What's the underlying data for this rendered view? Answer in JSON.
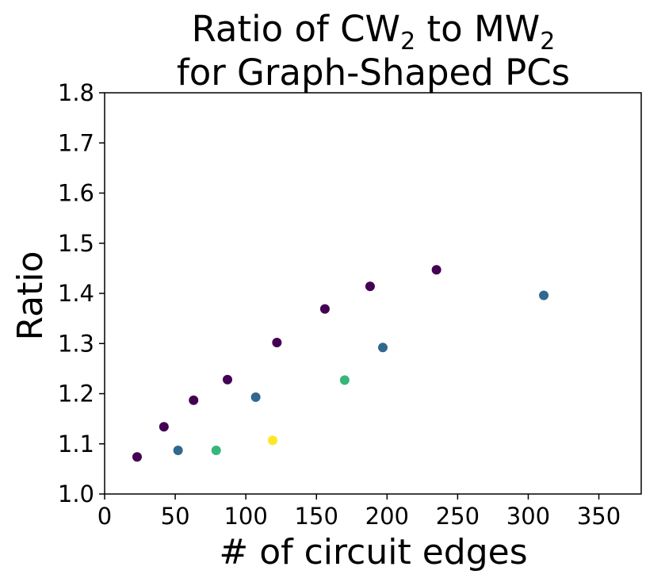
{
  "chart_data": {
    "type": "scatter",
    "title_line1": {
      "main": "Ratio of CW",
      "sub1": "2",
      "mid": " to MW",
      "sub2": "2"
    },
    "title_line2": "for Graph-Shaped PCs",
    "xlabel": "# of circuit edges",
    "ylabel": "Ratio",
    "xlim": [
      0,
      380
    ],
    "ylim": [
      1.0,
      1.8
    ],
    "xticks": [
      "0",
      "50",
      "100",
      "150",
      "200",
      "250",
      "300",
      "350"
    ],
    "yticks": [
      "1.0",
      "1.1",
      "1.2",
      "1.3",
      "1.4",
      "1.5",
      "1.6",
      "1.7",
      "1.8"
    ],
    "grid": false,
    "colors": {
      "purple": "#440154",
      "blue": "#31688e",
      "green": "#35b779",
      "yellow": "#fde725"
    },
    "points": [
      {
        "x": 23,
        "y": 1.074,
        "color": "purple"
      },
      {
        "x": 42,
        "y": 1.134,
        "color": "purple"
      },
      {
        "x": 63,
        "y": 1.187,
        "color": "purple"
      },
      {
        "x": 87,
        "y": 1.228,
        "color": "purple"
      },
      {
        "x": 122,
        "y": 1.302,
        "color": "purple"
      },
      {
        "x": 156,
        "y": 1.369,
        "color": "purple"
      },
      {
        "x": 188,
        "y": 1.414,
        "color": "purple"
      },
      {
        "x": 235,
        "y": 1.447,
        "color": "purple"
      },
      {
        "x": 52,
        "y": 1.087,
        "color": "blue"
      },
      {
        "x": 107,
        "y": 1.193,
        "color": "blue"
      },
      {
        "x": 197,
        "y": 1.292,
        "color": "blue"
      },
      {
        "x": 311,
        "y": 1.396,
        "color": "blue"
      },
      {
        "x": 79,
        "y": 1.087,
        "color": "green"
      },
      {
        "x": 170,
        "y": 1.227,
        "color": "green"
      },
      {
        "x": 119,
        "y": 1.107,
        "color": "yellow"
      }
    ]
  }
}
